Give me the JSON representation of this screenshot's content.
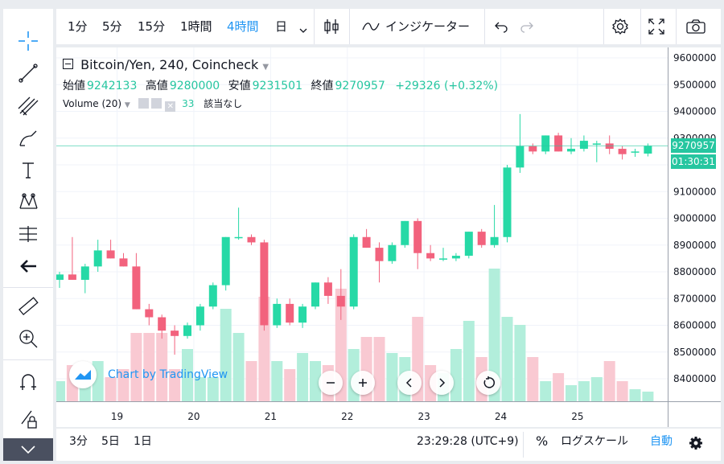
{
  "toolbar": {
    "intervals": [
      "1分",
      "5分",
      "15分",
      "1時間",
      "4時間",
      "日"
    ],
    "active_interval": "4時間",
    "indicators_label": "インジケーター"
  },
  "legend": {
    "symbol": "Bitcoin/Yen, 240, Coincheck",
    "open_label": "始値",
    "open_value": "9242133",
    "high_label": "高値",
    "high_value": "9280000",
    "low_label": "安値",
    "low_value": "9231501",
    "close_label": "終値",
    "close_value": "9270957",
    "change": "+29326 (+0.32%)",
    "volume_label": "Volume (20)",
    "volume_value": "33",
    "volume_ma": "該当なし"
  },
  "watermark": "Chart by TradingView",
  "price_label": "9270957",
  "countdown_label": "01:30:31",
  "bottombar": {
    "ranges": [
      "3分",
      "5日",
      "1日"
    ],
    "clock": "23:29:28 (UTC+9)",
    "percent": "%",
    "log": "ログスケール",
    "auto": "自動"
  },
  "colors": {
    "up": "#26d9a6",
    "down": "#f2627d",
    "accent": "#2196f3",
    "up_volume": "#b2eedb",
    "down_volume": "#f9c9d2"
  },
  "chart_data": {
    "type": "candlestick",
    "y_ticks": [
      8400000,
      8500000,
      8600000,
      8700000,
      8800000,
      8900000,
      9000000,
      9100000,
      9200000,
      9300000,
      9400000,
      9500000,
      9600000
    ],
    "ylim": [
      8300000,
      9630000
    ],
    "x_ticks": [
      {
        "label": "19",
        "index": 4.5
      },
      {
        "label": "20",
        "index": 10.5
      },
      {
        "label": "21",
        "index": 16.5
      },
      {
        "label": "22",
        "index": 22.5
      },
      {
        "label": "23",
        "index": 28.5
      },
      {
        "label": "24",
        "index": 34.5
      },
      {
        "label": "25",
        "index": 40.5
      }
    ],
    "current_price": 9270957,
    "candles": [
      {
        "o": 8770000,
        "h": 8800000,
        "l": 8740000,
        "c": 8790000,
        "v": 0.25
      },
      {
        "o": 8790000,
        "h": 8930000,
        "l": 8770000,
        "c": 8770000,
        "v": 0.45
      },
      {
        "o": 8770000,
        "h": 8830000,
        "l": 8720000,
        "c": 8820000,
        "v": 0.45
      },
      {
        "o": 8820000,
        "h": 8920000,
        "l": 8800000,
        "c": 8880000,
        "v": 0.5
      },
      {
        "o": 8880000,
        "h": 8920000,
        "l": 8850000,
        "c": 8850000,
        "v": 0.3
      },
      {
        "o": 8850000,
        "h": 8870000,
        "l": 8820000,
        "c": 8820000,
        "v": 0.4
      },
      {
        "o": 8820000,
        "h": 8870000,
        "l": 8660000,
        "c": 8660000,
        "v": 0.85
      },
      {
        "o": 8660000,
        "h": 8680000,
        "l": 8600000,
        "c": 8630000,
        "v": 0.85
      },
      {
        "o": 8630000,
        "h": 8640000,
        "l": 8550000,
        "c": 8580000,
        "v": 0.85
      },
      {
        "o": 8580000,
        "h": 8600000,
        "l": 8490000,
        "c": 8560000,
        "v": 0.4
      },
      {
        "o": 8560000,
        "h": 8610000,
        "l": 8550000,
        "c": 8600000,
        "v": 0.65
      },
      {
        "o": 8600000,
        "h": 8680000,
        "l": 8580000,
        "c": 8670000,
        "v": 0.3
      },
      {
        "o": 8670000,
        "h": 8760000,
        "l": 8660000,
        "c": 8750000,
        "v": 0.3
      },
      {
        "o": 8750000,
        "h": 8930000,
        "l": 8730000,
        "c": 8930000,
        "v": 1.15
      },
      {
        "o": 8930000,
        "h": 9040000,
        "l": 8920000,
        "c": 8930000,
        "v": 0.85
      },
      {
        "o": 8930000,
        "h": 8940000,
        "l": 8900000,
        "c": 8910000,
        "v": 0.5
      },
      {
        "o": 8910000,
        "h": 8920000,
        "l": 8580000,
        "c": 8600000,
        "v": 1.3
      },
      {
        "o": 8600000,
        "h": 8700000,
        "l": 8590000,
        "c": 8680000,
        "v": 0.5
      },
      {
        "o": 8680000,
        "h": 8700000,
        "l": 8600000,
        "c": 8610000,
        "v": 0.4
      },
      {
        "o": 8610000,
        "h": 8680000,
        "l": 8590000,
        "c": 8670000,
        "v": 0.6
      },
      {
        "o": 8670000,
        "h": 8760000,
        "l": 8660000,
        "c": 8760000,
        "v": 0.5
      },
      {
        "o": 8760000,
        "h": 8780000,
        "l": 8680000,
        "c": 8710000,
        "v": 0.45
      },
      {
        "o": 8710000,
        "h": 8810000,
        "l": 8620000,
        "c": 8670000,
        "v": 1.4
      },
      {
        "o": 8670000,
        "h": 8940000,
        "l": 8660000,
        "c": 8930000,
        "v": 0.65
      },
      {
        "o": 8930000,
        "h": 8960000,
        "l": 8890000,
        "c": 8890000,
        "v": 0.8
      },
      {
        "o": 8890000,
        "h": 8910000,
        "l": 8760000,
        "c": 8840000,
        "v": 0.8
      },
      {
        "o": 8840000,
        "h": 8910000,
        "l": 8830000,
        "c": 8900000,
        "v": 0.6
      },
      {
        "o": 8900000,
        "h": 8990000,
        "l": 8890000,
        "c": 8990000,
        "v": 0.55
      },
      {
        "o": 8990000,
        "h": 9000000,
        "l": 8810000,
        "c": 8870000,
        "v": 1.05
      },
      {
        "o": 8870000,
        "h": 8900000,
        "l": 8840000,
        "c": 8850000,
        "v": 0.45
      },
      {
        "o": 8850000,
        "h": 8890000,
        "l": 8840000,
        "c": 8850000,
        "v": 0.35
      },
      {
        "o": 8850000,
        "h": 8870000,
        "l": 8840000,
        "c": 8860000,
        "v": 0.65
      },
      {
        "o": 8860000,
        "h": 8950000,
        "l": 8850000,
        "c": 8950000,
        "v": 1.0
      },
      {
        "o": 8950000,
        "h": 8960000,
        "l": 8890000,
        "c": 8900000,
        "v": 0.55
      },
      {
        "o": 8900000,
        "h": 9050000,
        "l": 8890000,
        "c": 8930000,
        "v": 1.65
      },
      {
        "o": 8930000,
        "h": 9200000,
        "l": 8910000,
        "c": 9190000,
        "v": 1.05
      },
      {
        "o": 9190000,
        "h": 9390000,
        "l": 9170000,
        "c": 9270000,
        "v": 0.95
      },
      {
        "o": 9270000,
        "h": 9280000,
        "l": 9240000,
        "c": 9250000,
        "v": 0.55
      },
      {
        "o": 9250000,
        "h": 9310000,
        "l": 9240000,
        "c": 9310000,
        "v": 0.25
      },
      {
        "o": 9310000,
        "h": 9320000,
        "l": 9250000,
        "c": 9250000,
        "v": 0.35
      },
      {
        "o": 9250000,
        "h": 9300000,
        "l": 9240000,
        "c": 9260000,
        "v": 0.2
      },
      {
        "o": 9260000,
        "h": 9310000,
        "l": 9250000,
        "c": 9290000,
        "v": 0.25
      },
      {
        "o": 9280000,
        "h": 9290000,
        "l": 9210000,
        "c": 9280000,
        "v": 0.3
      },
      {
        "o": 9280000,
        "h": 9310000,
        "l": 9240000,
        "c": 9260000,
        "v": 0.5
      },
      {
        "o": 9260000,
        "h": 9270000,
        "l": 9220000,
        "c": 9240000,
        "v": 0.25
      },
      {
        "o": 9250000,
        "h": 9260000,
        "l": 9230000,
        "c": 9250000,
        "v": 0.15
      },
      {
        "o": 9242133,
        "h": 9280000,
        "l": 9231501,
        "c": 9270957,
        "v": 0.12
      }
    ]
  }
}
